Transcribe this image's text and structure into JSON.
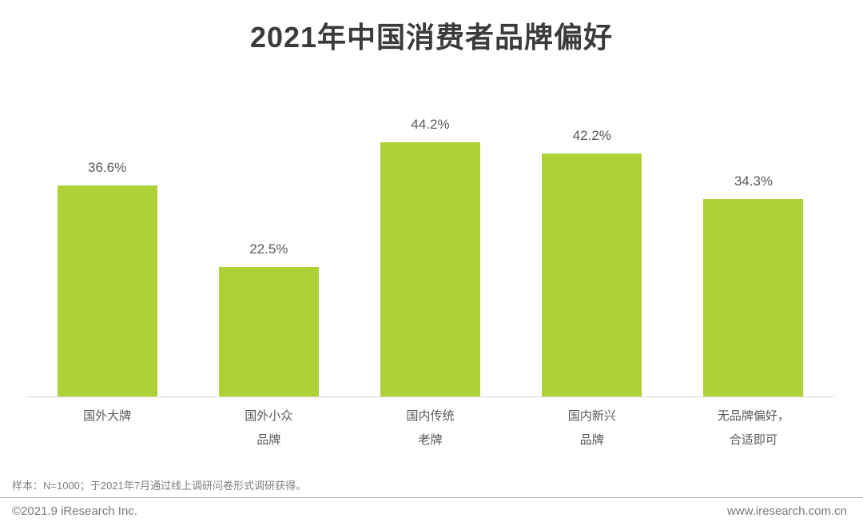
{
  "page": {
    "title": "2021年中国消费者品牌偏好",
    "footnote": "样本：N=1000；于2021年7月通过线上调研问卷形式调研获得。",
    "footer_left": "©2021.9 iResearch Inc.",
    "footer_right": "www.iresearch.com.cn"
  },
  "colors": {
    "bar": "#AED137",
    "title": "#3B3B3B",
    "label": "#595959",
    "axis": "#D9D9D9",
    "footnote": "#808080",
    "separator": "#B3B3B3",
    "footer": "#7A7A7A"
  },
  "chart_data": {
    "type": "bar",
    "title": "2021年中国消费者品牌偏好",
    "categories": [
      "国外大牌",
      "国外小众品牌",
      "国内传统老牌",
      "国内新兴品牌",
      "无品牌偏好，合适即可"
    ],
    "category_lines": [
      [
        "国外大牌",
        ""
      ],
      [
        "国外小众",
        "品牌"
      ],
      [
        "国内传统",
        "老牌"
      ],
      [
        "国内新兴",
        "品牌"
      ],
      [
        "无品牌偏好，",
        "合适即可"
      ]
    ],
    "values": [
      36.6,
      22.5,
      44.2,
      42.2,
      34.3
    ],
    "value_labels": [
      "36.6%",
      "22.5%",
      "44.2%",
      "42.2%",
      "34.3%"
    ],
    "unit": "%",
    "xlabel": "",
    "ylabel": "",
    "ylim": [
      0,
      55
    ],
    "grid": false,
    "legend": false,
    "bar_color": "#AED137"
  }
}
